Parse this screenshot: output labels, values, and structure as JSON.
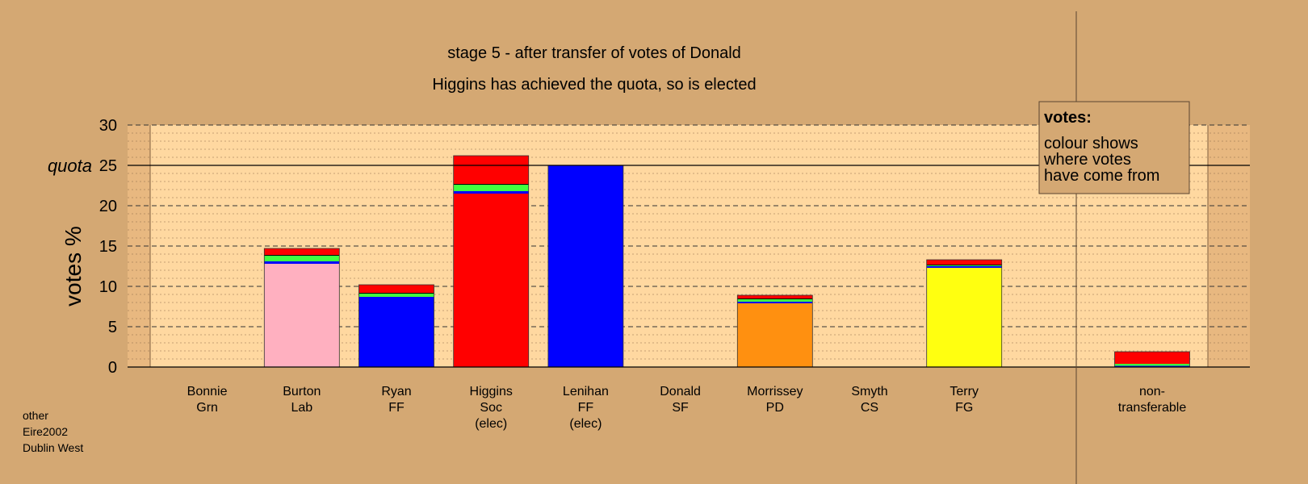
{
  "chart_data": {
    "type": "bar",
    "stacked": true,
    "title": "stage 5 - after transfer of votes of Donald",
    "subtitle": "Higgins has achieved the quota, so is elected",
    "ylabel": "votes %",
    "quota_label": "quota",
    "quota_value": 25,
    "ylim": [
      0,
      30
    ],
    "yticks": [
      "0",
      "5",
      "10",
      "15",
      "20",
      "25",
      "30"
    ],
    "grid": true,
    "legend_position": "top-right",
    "legend": {
      "title": "votes:",
      "lines": [
        "colour shows",
        "where votes",
        "have come from"
      ]
    },
    "colors": {
      "Lab": "#ffb0c0",
      "FF": "#0000ff",
      "Soc": "#ff0000",
      "PD": "#ff9010",
      "FG": "#ffff10",
      "Grn": "#30ff30",
      "transfer_red": "#ff0000",
      "transfer_green": "#40ff40"
    },
    "categories": [
      {
        "name": "Bonnie",
        "party": "Grn",
        "note": "",
        "segments": []
      },
      {
        "name": "Burton",
        "party": "Lab",
        "note": "",
        "segments": [
          {
            "value": 12.8,
            "color": "#ffb0c0"
          },
          {
            "value": 0.3,
            "color": "#0000ff"
          },
          {
            "value": 0.7,
            "color": "#40ff40"
          },
          {
            "value": 0.1,
            "color": "#000000"
          },
          {
            "value": 0.8,
            "color": "#ff0000"
          }
        ]
      },
      {
        "name": "Ryan",
        "party": "FF",
        "note": "",
        "segments": [
          {
            "value": 7.8,
            "color": "#0000ff"
          },
          {
            "value": 0.9,
            "color": "#0000ff"
          },
          {
            "value": 0.4,
            "color": "#40ff40"
          },
          {
            "value": 0.1,
            "color": "#000000"
          },
          {
            "value": 1.0,
            "color": "#ff0000"
          }
        ]
      },
      {
        "name": "Higgins",
        "party": "Soc",
        "note": "(elec)",
        "segments": [
          {
            "value": 21.5,
            "color": "#ff0000"
          },
          {
            "value": 0.3,
            "color": "#0000ff"
          },
          {
            "value": 0.8,
            "color": "#40ff40"
          },
          {
            "value": 0.1,
            "color": "#000000"
          },
          {
            "value": 3.5,
            "color": "#ff0000"
          }
        ]
      },
      {
        "name": "Lenihan",
        "party": "FF",
        "note": "(elec)",
        "segments": [
          {
            "value": 25.0,
            "color": "#0000ff"
          }
        ]
      },
      {
        "name": "Donald",
        "party": "SF",
        "note": "",
        "segments": []
      },
      {
        "name": "Morrissey",
        "party": "PD",
        "note": "",
        "segments": [
          {
            "value": 7.9,
            "color": "#ff9010"
          },
          {
            "value": 0.2,
            "color": "#0000ff"
          },
          {
            "value": 0.3,
            "color": "#40ff40"
          },
          {
            "value": 0.1,
            "color": "#000000"
          },
          {
            "value": 0.4,
            "color": "#ff0000"
          }
        ]
      },
      {
        "name": "Smyth",
        "party": "CS",
        "note": "",
        "segments": []
      },
      {
        "name": "Terry",
        "party": "FG",
        "note": "",
        "segments": [
          {
            "value": 12.3,
            "color": "#ffff10"
          },
          {
            "value": 0.2,
            "color": "#0000ff"
          },
          {
            "value": 0.1,
            "color": "#40ff40"
          },
          {
            "value": 0.1,
            "color": "#000000"
          },
          {
            "value": 0.6,
            "color": "#ff0000"
          }
        ]
      }
    ],
    "non_transferable": {
      "name": "non-",
      "party": "transferable",
      "segments": [
        {
          "value": 0.15,
          "color": "#0000ff"
        },
        {
          "value": 0.25,
          "color": "#40ff40"
        },
        {
          "value": 1.5,
          "color": "#ff0000"
        }
      ]
    }
  },
  "footer": {
    "lines": [
      "other",
      "Eire2002",
      "Dublin West"
    ]
  }
}
